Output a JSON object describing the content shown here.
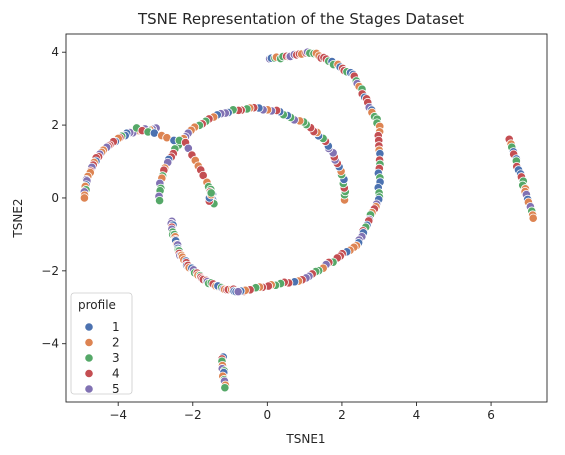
{
  "chart_data": {
    "type": "scatter",
    "title": "TSNE Representation of the Stages Dataset",
    "xlabel": "TSNE1",
    "ylabel": "TSNE2",
    "xlim": [
      -5.4,
      7.5
    ],
    "ylim": [
      -5.6,
      4.5
    ],
    "xticks": [
      -4,
      -2,
      0,
      2,
      4,
      6
    ],
    "yticks": [
      -4,
      -2,
      0,
      2,
      4
    ],
    "grid": false,
    "legend": {
      "title": "profile",
      "placement": "lower-left"
    },
    "series": [
      {
        "name": "1",
        "color": "#4c72b0"
      },
      {
        "name": "2",
        "color": "#dd8452"
      },
      {
        "name": "3",
        "color": "#55a868"
      },
      {
        "name": "4",
        "color": "#c44e52"
      },
      {
        "name": "5",
        "color": "#8172b3"
      }
    ],
    "clusters": [
      {
        "shape": "arc",
        "center": [
          -0.4,
          -0.05
        ],
        "radius": 2.5,
        "start_deg": 0,
        "end_deg": 180,
        "count": 70
      },
      {
        "shape": "arc",
        "center": [
          -0.65,
          -0.65
        ],
        "radius": 1.9,
        "start_deg": 180,
        "end_deg": 270,
        "count": 55
      },
      {
        "shape": "arc",
        "center": [
          -3.0,
          0.0
        ],
        "radius": 1.9,
        "start_deg": 90,
        "end_deg": 180,
        "count": 40
      },
      {
        "shape": "curve",
        "points": [
          [
            -3.5,
            1.92
          ],
          [
            -2.2,
            1.5
          ],
          [
            -1.55,
            0.3
          ],
          [
            -1.45,
            -0.15
          ]
        ],
        "count": 25
      },
      {
        "shape": "curve",
        "points": [
          [
            0.05,
            3.8
          ],
          [
            1.2,
            4.0
          ],
          [
            2.3,
            3.4
          ],
          [
            3.0,
            2.0
          ],
          [
            3.0,
            0.0
          ],
          [
            2.4,
            -1.3
          ],
          [
            1.0,
            -2.25
          ],
          [
            -0.8,
            -2.55
          ]
        ],
        "count": 110
      },
      {
        "shape": "line",
        "from": [
          6.5,
          1.6
        ],
        "to": [
          7.15,
          -0.55
        ],
        "count": 22
      },
      {
        "shape": "line",
        "from": [
          -1.2,
          -4.35
        ],
        "to": [
          -1.15,
          -5.2
        ],
        "count": 12
      },
      {
        "shape": "line",
        "from": [
          -1.55,
          -0.1
        ],
        "to": [
          -1.5,
          0.15
        ],
        "count": 4
      }
    ]
  }
}
